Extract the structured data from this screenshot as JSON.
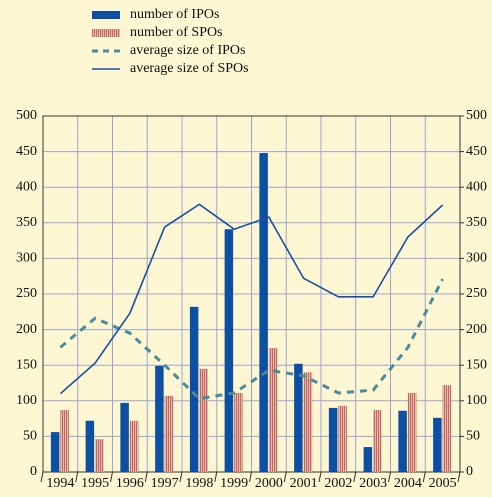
{
  "chart_data": {
    "type": "bar",
    "categories": [
      "1994",
      "1995",
      "1996",
      "1997",
      "1998",
      "1999",
      "2000",
      "2001",
      "2002",
      "2003",
      "2004",
      "2005"
    ],
    "series": [
      {
        "name": "number of IPOs",
        "kind": "bar",
        "color": "#0c4fa3",
        "values": [
          56,
          72,
          97,
          149,
          232,
          341,
          448,
          152,
          90,
          35,
          86,
          76
        ]
      },
      {
        "name": "number of SPOs",
        "kind": "bar",
        "color": "#d4877e",
        "striped": true,
        "values": [
          87,
          46,
          72,
          107,
          145,
          111,
          174,
          140,
          93,
          87,
          111,
          122
        ]
      },
      {
        "name": "average size of IPOs",
        "kind": "line",
        "dashed": true,
        "color": "#4b8b9b",
        "values": [
          175,
          216,
          195,
          150,
          103,
          111,
          143,
          135,
          111,
          115,
          175,
          271
        ]
      },
      {
        "name": "average size of SPOs",
        "kind": "line",
        "color": "#1a4fa3",
        "values": [
          110,
          153,
          223,
          344,
          376,
          341,
          358,
          272,
          246,
          246,
          330,
          375
        ]
      }
    ],
    "ylim": [
      0,
      500
    ],
    "yticks": [
      0,
      50,
      100,
      150,
      200,
      250,
      300,
      350,
      400,
      450,
      500
    ],
    "y2lim": [
      0,
      500
    ],
    "y2ticks": [
      0,
      50,
      100,
      150,
      200,
      250,
      300,
      350,
      400,
      450,
      500
    ],
    "grid": true
  }
}
